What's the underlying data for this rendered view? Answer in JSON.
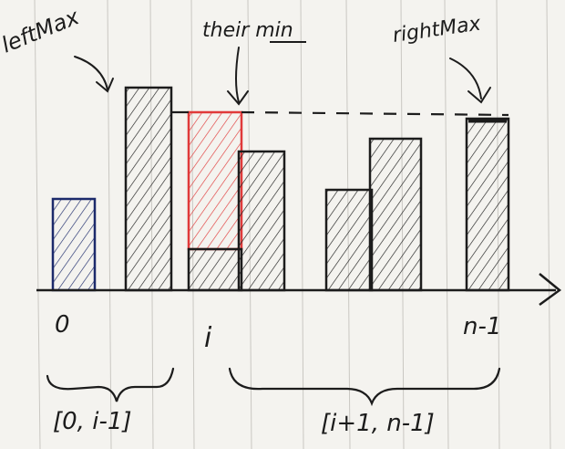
{
  "annotations": {
    "left_max": "leftMax",
    "their_min": "their min",
    "right_max": "rightMax"
  },
  "x_labels": {
    "first": "0",
    "current": "i",
    "last": "n-1"
  },
  "ranges": {
    "left": "[0, i-1]",
    "right": "[i+1, n-1]"
  },
  "bars": [
    {
      "label": "bar-0",
      "height": 2.0,
      "trapped_water": 0
    },
    {
      "label": "bar-1",
      "height": 4.4,
      "trapped_water": 0
    },
    {
      "label": "bar-i",
      "height": 0.9,
      "trapped_water": 3.1
    },
    {
      "label": "bar-3",
      "height": 3.2,
      "trapped_water": 0
    },
    {
      "label": "bar-4",
      "height": 2.2,
      "trapped_water": 0
    },
    {
      "label": "bar-5",
      "height": 3.4,
      "trapped_water": 0
    },
    {
      "label": "bar-n-1",
      "height": 3.9,
      "trapped_water": 0
    }
  ],
  "colors": {
    "ink": "#1c1c1c",
    "water": "#e03a3a",
    "bar0_outline": "#1c2a6b"
  }
}
